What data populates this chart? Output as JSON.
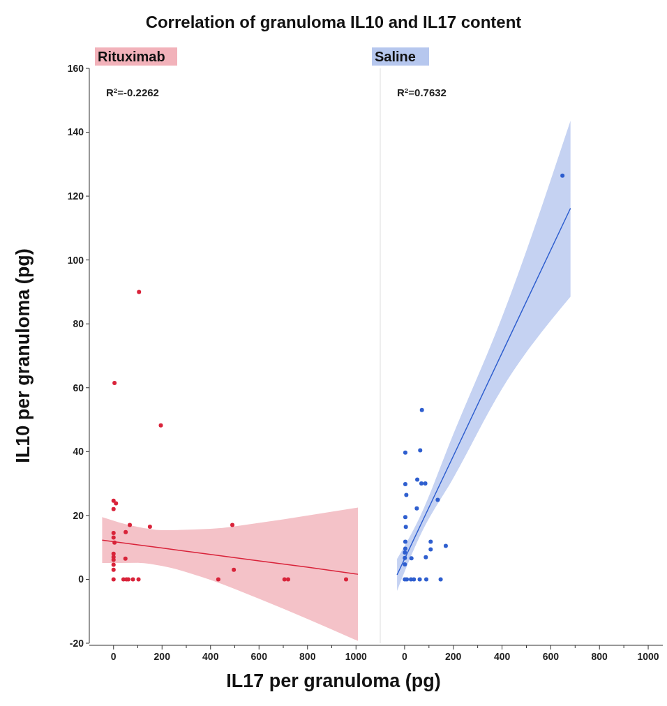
{
  "chart_data": [
    {
      "type": "scatter",
      "title": "Correlation of granuloma IL10 and IL17 content",
      "xlabel": "IL17 per granuloma (pg)",
      "ylabel": "IL10 per granuloma (pg)",
      "marker": "circle",
      "legend": "top left",
      "annotations": [
        "R$^{2}$=-0.2262"
      ],
      "xlim": [
        -100,
        1100
      ],
      "xticks": [
        0,
        {
          "value": 100,
          "label": null
        },
        200,
        {
          "value": 300,
          "label": null
        },
        400,
        {
          "value": 500,
          "label": null
        },
        600,
        {
          "value": 700,
          "label": null
        },
        800,
        {
          "value": 900,
          "label": null
        },
        1000
      ],
      "ylim": [
        -20,
        160
      ],
      "yticks": [
        -20,
        0,
        20,
        40,
        60,
        80,
        100,
        120,
        140,
        160
      ],
      "series": [
        {
          "name": "Rituximab",
          "color": "#d9233a",
          "x": [
            105,
            4,
            195,
            0,
            10,
            0,
            67,
            150,
            490,
            50,
            0,
            0,
            4,
            0,
            0,
            0,
            49,
            0,
            0,
            496,
            0,
            41,
            53,
            61,
            80,
            103,
            432,
            705,
            720,
            959
          ],
          "values": [
            90,
            61.5,
            48.2,
            24.6,
            23.8,
            22,
            17,
            16.5,
            17,
            14.8,
            14.5,
            13.1,
            11.5,
            8,
            7,
            6.1,
            6.5,
            4.6,
            3,
            3,
            0,
            0,
            0,
            0,
            0,
            0,
            0,
            0,
            0,
            0
          ]
        },
        {
          "type": "line",
          "color": "#d9233a",
          "line_style": "solid",
          "marker": "none",
          "x": [
            -47,
            100,
            200,
            400,
            600,
            800,
            1008
          ],
          "values": [
            12.3,
            10.8,
            9.8,
            7.8,
            5.8,
            3.8,
            1.6
          ],
          "lower": [
            5.1,
            5.2,
            4.2,
            -0.2,
            -6.1,
            -12.4,
            -19.3
          ],
          "upper": [
            19.5,
            16.4,
            15.4,
            15.8,
            17.7,
            20,
            22.5
          ]
        }
      ]
    },
    {
      "type": "scatter",
      "marker": "circle",
      "legend": "top left",
      "tick_labels": "x",
      "annotations": [
        "R$^{2}$=0.7632"
      ],
      "xlim": [
        -100,
        1060
      ],
      "xticks": [
        0,
        {
          "value": 100,
          "label": null
        },
        200,
        {
          "value": 300,
          "label": null
        },
        400,
        {
          "value": 500,
          "label": null
        },
        600,
        {
          "value": 700,
          "label": null
        },
        800,
        {
          "value": 900,
          "label": null
        },
        1000
      ],
      "ylim": [
        -20,
        160
      ],
      "series": [
        {
          "name": "Saline",
          "color": "#2f5fcf",
          "x": [
            648,
            71,
            3,
            64,
            3,
            52,
            69,
            85,
            7,
            136,
            50,
            3,
            5,
            3,
            107,
            3,
            1,
            107,
            169,
            28,
            87,
            1,
            1,
            1,
            9,
            26,
            38,
            62,
            89,
            148
          ],
          "values": [
            126.4,
            53,
            39.7,
            40.4,
            29.8,
            31.2,
            30,
            30,
            26.4,
            24.9,
            22.2,
            19.5,
            16.4,
            11.8,
            11.8,
            9.6,
            8.4,
            9.4,
            10.5,
            6.6,
            6.9,
            6.7,
            4.7,
            0,
            0,
            0,
            0,
            0,
            0,
            0
          ]
        },
        {
          "type": "line",
          "color": "#2f5fcf",
          "line_style": "solid",
          "marker": "none",
          "x": [
            -31,
            60,
            200,
            400,
            681
          ],
          "values": [
            1.4,
            16.1,
            38.6,
            70.9,
            116.2
          ],
          "lower": [
            -3.6,
            13.1,
            31.7,
            59.7,
            88.5
          ],
          "upper": [
            6.4,
            19.1,
            45.5,
            82.1,
            143.6
          ]
        }
      ]
    }
  ]
}
